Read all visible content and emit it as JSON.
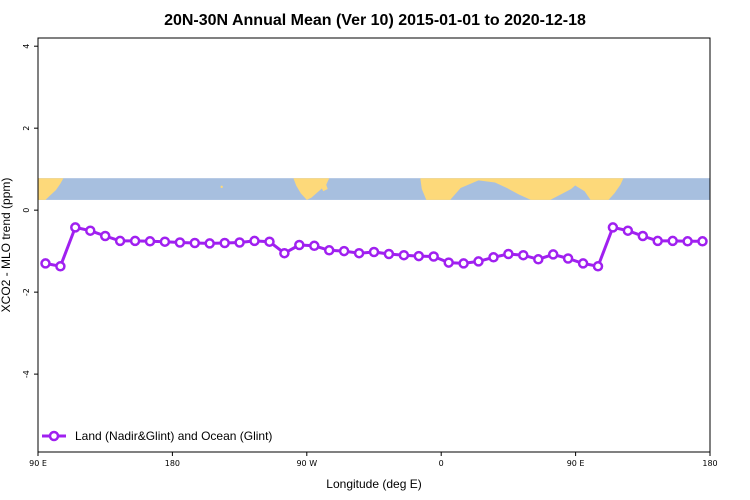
{
  "chart_data": {
    "type": "line",
    "title": "20N-30N Annual Mean (Ver 10)   2015-01-01 to 2020-12-18",
    "xlabel": "Longitude (deg E)",
    "ylabel": "XCO2 - MLO trend (ppm)",
    "xlim": [
      90,
      540
    ],
    "ylim": [
      -5.9,
      4.2
    ],
    "x_ticks": [
      {
        "value": 90,
        "label": "90 E"
      },
      {
        "value": 180,
        "label": "180"
      },
      {
        "value": 270,
        "label": "90 W"
      },
      {
        "value": 360,
        "label": "0"
      },
      {
        "value": 450,
        "label": "90 E"
      },
      {
        "value": 540,
        "label": "180"
      }
    ],
    "y_ticks": [
      {
        "value": 4,
        "label": "4"
      },
      {
        "value": 2,
        "label": "2"
      },
      {
        "value": 0,
        "label": "0"
      },
      {
        "value": -2,
        "label": "-2"
      },
      {
        "value": -4,
        "label": "-4"
      }
    ],
    "grid": false,
    "legend_position": "bottom-left",
    "map_band": {
      "y_min": 0.25,
      "y_max": 0.78,
      "ocean_color": "#a7bfdf",
      "land_color": "#fdd97a"
    },
    "series": [
      {
        "name": "Land (Nadir&Glint) and Ocean (Glint)",
        "color": "#a020f0",
        "x": [
          95,
          105,
          115,
          125,
          135,
          145,
          155,
          165,
          175,
          185,
          195,
          205,
          215,
          225,
          235,
          245,
          255,
          265,
          275,
          285,
          295,
          305,
          315,
          325,
          335,
          345,
          355,
          365,
          375,
          385,
          395,
          405,
          415,
          425,
          435,
          445,
          455,
          465,
          475,
          485,
          495,
          505,
          515,
          525,
          535
        ],
        "y": [
          -1.3,
          -1.37,
          -0.42,
          -0.5,
          -0.63,
          -0.75,
          -0.75,
          -0.76,
          -0.77,
          -0.79,
          -0.8,
          -0.81,
          -0.8,
          -0.79,
          -0.75,
          -0.77,
          -1.05,
          -0.85,
          -0.87,
          -0.98,
          -1.0,
          -1.05,
          -1.02,
          -1.07,
          -1.1,
          -1.12,
          -1.13,
          -1.28,
          -1.3,
          -1.25,
          -1.15,
          -1.07,
          -1.1,
          -1.2,
          -1.08,
          -1.18,
          -1.3,
          -1.37,
          -0.42,
          -0.5,
          -0.63,
          -0.75,
          -0.75,
          -0.76,
          -0.76
        ]
      }
    ]
  }
}
